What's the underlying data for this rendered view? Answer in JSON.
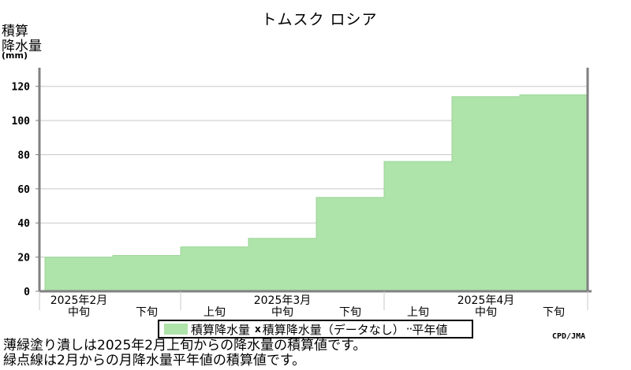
{
  "page": {
    "title": "トムスク ロシア",
    "y_axis_label_line1": "積算",
    "y_axis_label_line2": "降水量",
    "y_axis_unit": "(mm)",
    "credit": "CPD/JMA",
    "note_line1": "薄緑塗り潰しは2025年2月上旬からの降水量の積算値です。",
    "note_line2": "緑点線は2月からの月降水量平年値の積算値です。"
  },
  "legend": {
    "item1": "積算降水量",
    "item2_mark": "x",
    "item2": "積算降水量（データなし）",
    "item3": "平年値"
  },
  "colors": {
    "fill": "#aee3aa",
    "axis": "#808080",
    "grid": "#c8c8c8"
  },
  "chart_data": {
    "type": "area",
    "title": "トムスク ロシア",
    "ylabel": "積算降水量 (mm)",
    "ylim": [
      0,
      130
    ],
    "yticks": [
      0,
      20,
      40,
      60,
      80,
      100,
      120
    ],
    "grid": true,
    "x": [
      "2025年2月中旬",
      "2025年2月下旬",
      "2025年3月上旬",
      "2025年3月中旬",
      "2025年3月下旬",
      "2025年4月上旬",
      "2025年4月中旬",
      "2025年4月下旬"
    ],
    "x_dekad_labels": [
      "中旬",
      "下旬",
      "上旬",
      "中旬",
      "下旬",
      "上旬",
      "中旬",
      "下旬"
    ],
    "x_month_labels": [
      {
        "label": "2025年2月",
        "dekad_index": 0
      },
      {
        "label": "2025年3月",
        "dekad_index": 3
      },
      {
        "label": "2025年4月",
        "dekad_index": 6
      }
    ],
    "series": [
      {
        "name": "積算降水量",
        "values": [
          20,
          21,
          26,
          31,
          55,
          76,
          114,
          115
        ]
      }
    ]
  }
}
